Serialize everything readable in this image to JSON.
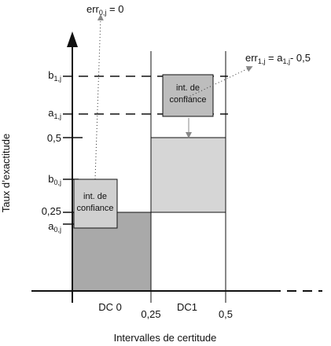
{
  "axes": {
    "x_title": "Intervalles de certitude",
    "y_title": "Taux d’exactitude"
  },
  "y_labels": [
    {
      "base": "b",
      "sub": "1,j"
    },
    {
      "base": "a",
      "sub": "1,j"
    },
    {
      "base": "0,5"
    },
    {
      "base": "b",
      "sub": "0,j"
    },
    {
      "base": "0,25"
    },
    {
      "base": "a",
      "sub": "0,j"
    }
  ],
  "x_labels": [
    "DC 0",
    "0,25",
    "DC1",
    "0,5"
  ],
  "boxes": [
    [
      "int. de",
      "confiance"
    ],
    [
      "int. de",
      "confiance"
    ]
  ],
  "annotations": [
    [
      "err",
      "0,j",
      " = 0"
    ],
    [
      "err",
      "1,j",
      " = a",
      "1,j",
      "- 0,5"
    ]
  ]
}
